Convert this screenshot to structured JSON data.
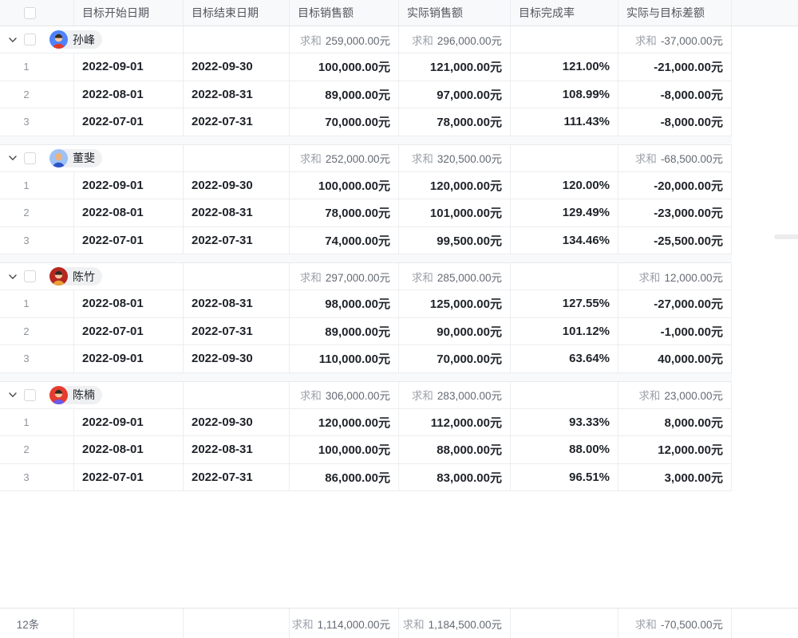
{
  "table": {
    "sum_label": "求和",
    "columns": [
      {
        "label": "目标开始日期"
      },
      {
        "label": "目标结束日期"
      },
      {
        "label": "目标销售额"
      },
      {
        "label": "实际销售额"
      },
      {
        "label": "目标完成率"
      },
      {
        "label": "实际与目标差额"
      }
    ],
    "groups": [
      {
        "name": "孙峰",
        "avatar": {
          "bg": "#4e83fd",
          "shirt": "#e03e2d",
          "skin": "#f6c89f",
          "hair": "#35291f"
        },
        "sums": {
          "target": "259,000.00元",
          "actual": "296,000.00元",
          "diff": "-37,000.00元"
        },
        "rows": [
          {
            "index": "1",
            "start": "2022-09-01",
            "end": "2022-09-30",
            "target": "100,000.00元",
            "actual": "121,000.00元",
            "rate": "121.00%",
            "diff": "-21,000.00元"
          },
          {
            "index": "2",
            "start": "2022-08-01",
            "end": "2022-08-31",
            "target": "89,000.00元",
            "actual": "97,000.00元",
            "rate": "108.99%",
            "diff": "-8,000.00元"
          },
          {
            "index": "3",
            "start": "2022-07-01",
            "end": "2022-07-31",
            "target": "70,000.00元",
            "actual": "78,000.00元",
            "rate": "111.43%",
            "diff": "-8,000.00元"
          }
        ]
      },
      {
        "name": "董斐",
        "avatar": {
          "bg": "#9cc2f7",
          "shirt": "#2d55c8",
          "skin": "#e9b184",
          "hair": "none"
        },
        "sums": {
          "target": "252,000.00元",
          "actual": "320,500.00元",
          "diff": "-68,500.00元"
        },
        "rows": [
          {
            "index": "1",
            "start": "2022-09-01",
            "end": "2022-09-30",
            "target": "100,000.00元",
            "actual": "120,000.00元",
            "rate": "120.00%",
            "diff": "-20,000.00元"
          },
          {
            "index": "2",
            "start": "2022-08-01",
            "end": "2022-08-31",
            "target": "78,000.00元",
            "actual": "101,000.00元",
            "rate": "129.49%",
            "diff": "-23,000.00元"
          },
          {
            "index": "3",
            "start": "2022-07-01",
            "end": "2022-07-31",
            "target": "74,000.00元",
            "actual": "99,500.00元",
            "rate": "134.46%",
            "diff": "-25,500.00元"
          }
        ]
      },
      {
        "name": "陈竹",
        "avatar": {
          "bg": "#b5271f",
          "shirt": "#e8a13c",
          "skin": "#f6c89f",
          "hair": "#35291f"
        },
        "sums": {
          "target": "297,000.00元",
          "actual": "285,000.00元",
          "diff": "12,000.00元"
        },
        "rows": [
          {
            "index": "1",
            "start": "2022-08-01",
            "end": "2022-08-31",
            "target": "98,000.00元",
            "actual": "125,000.00元",
            "rate": "127.55%",
            "diff": "-27,000.00元"
          },
          {
            "index": "2",
            "start": "2022-07-01",
            "end": "2022-07-31",
            "target": "89,000.00元",
            "actual": "90,000.00元",
            "rate": "101.12%",
            "diff": "-1,000.00元"
          },
          {
            "index": "3",
            "start": "2022-09-01",
            "end": "2022-09-30",
            "target": "110,000.00元",
            "actual": "70,000.00元",
            "rate": "63.64%",
            "diff": "40,000.00元"
          }
        ]
      },
      {
        "name": "陈楠",
        "avatar": {
          "bg": "#e73a2e",
          "shirt": "#6a5ae8",
          "skin": "#f6c89f",
          "hair": "#35291f"
        },
        "sums": {
          "target": "306,000.00元",
          "actual": "283,000.00元",
          "diff": "23,000.00元"
        },
        "rows": [
          {
            "index": "1",
            "start": "2022-09-01",
            "end": "2022-09-30",
            "target": "120,000.00元",
            "actual": "112,000.00元",
            "rate": "93.33%",
            "diff": "8,000.00元"
          },
          {
            "index": "2",
            "start": "2022-08-01",
            "end": "2022-08-31",
            "target": "100,000.00元",
            "actual": "88,000.00元",
            "rate": "88.00%",
            "diff": "12,000.00元"
          },
          {
            "index": "3",
            "start": "2022-07-01",
            "end": "2022-07-31",
            "target": "86,000.00元",
            "actual": "83,000.00元",
            "rate": "96.51%",
            "diff": "3,000.00元"
          }
        ]
      }
    ],
    "footer": {
      "count": "12条",
      "sums": {
        "target": "1,114,000.00元",
        "actual": "1,184,500.00元",
        "diff": "-70,500.00元"
      }
    }
  }
}
